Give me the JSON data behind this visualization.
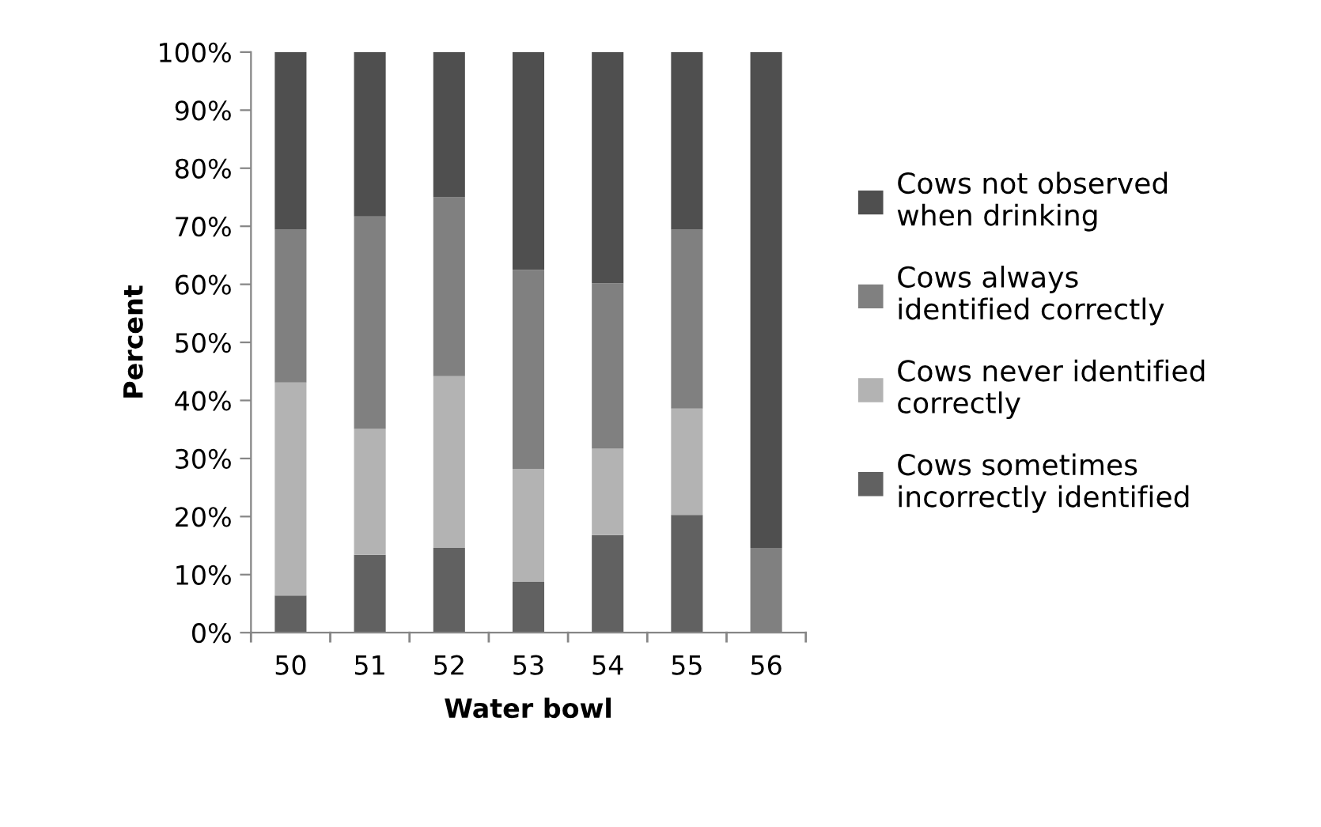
{
  "chart_data": {
    "type": "bar",
    "stacked": true,
    "xlabel": "Water bowl",
    "ylabel": "Percent",
    "categories": [
      "50",
      "51",
      "52",
      "53",
      "54",
      "55",
      "56"
    ],
    "series": [
      {
        "name": "Cows sometimes incorrectly identified",
        "color": "#616161",
        "values": [
          6.4,
          13.4,
          14.6,
          8.8,
          16.8,
          20.3,
          0
        ]
      },
      {
        "name": "Cows never identified correctly",
        "color": "#b3b3b3",
        "values": [
          36.7,
          21.7,
          29.6,
          19.4,
          14.9,
          18.3,
          0
        ]
      },
      {
        "name": "Cows always identified correctly",
        "color": "#808080",
        "values": [
          26.3,
          36.6,
          30.8,
          34.3,
          28.5,
          30.8,
          14.6
        ]
      },
      {
        "name": "Cows not observed when drinking",
        "color": "#4f4f4f",
        "values": [
          30.6,
          28.3,
          25.0,
          37.5,
          39.8,
          30.6,
          85.4
        ]
      }
    ],
    "ylim": [
      0,
      100
    ],
    "yticks": [
      {
        "value": 0,
        "label": "0%"
      },
      {
        "value": 10,
        "label": "10%"
      },
      {
        "value": 20,
        "label": "20%"
      },
      {
        "value": 30,
        "label": "30%"
      },
      {
        "value": 40,
        "label": "40%"
      },
      {
        "value": 50,
        "label": "50%"
      },
      {
        "value": 60,
        "label": "60%"
      },
      {
        "value": 70,
        "label": "70%"
      },
      {
        "value": 80,
        "label": "80%"
      },
      {
        "value": 90,
        "label": "90%"
      },
      {
        "value": 100,
        "label": "100%"
      }
    ],
    "grid": false,
    "legend": "right"
  }
}
